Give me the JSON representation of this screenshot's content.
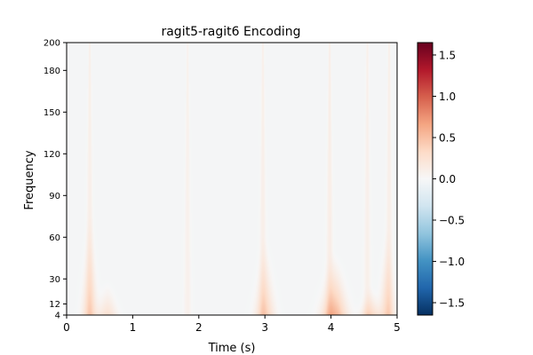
{
  "chart_data": {
    "type": "heatmap",
    "title": "ragit5-ragit6 Encoding",
    "xlabel": "Time (s)",
    "ylabel": "Frequency",
    "xlim": [
      0,
      5
    ],
    "ylim": [
      4,
      200
    ],
    "x_ticks": [
      "0",
      "1",
      "2",
      "3",
      "4",
      "5"
    ],
    "y_ticks": [
      "4",
      "12",
      "30",
      "60",
      "90",
      "120",
      "150",
      "180",
      "200"
    ],
    "colorbar": {
      "colormap": "RdBu_r",
      "range": [
        -1.65,
        1.65
      ],
      "ticks": [
        "1.5",
        "1.0",
        "0.5",
        "0.0",
        "−0.5",
        "−1.0",
        "−1.5"
      ]
    },
    "background_value": -0.03,
    "features": [
      {
        "kind": "blob",
        "time": 0.35,
        "freq_low": 4,
        "freq_high": 80,
        "peak": 0.35,
        "width_s": 0.08
      },
      {
        "kind": "blob",
        "time": 0.62,
        "freq_low": 4,
        "freq_high": 30,
        "peak": 0.28,
        "width_s": 0.1
      },
      {
        "kind": "blob",
        "time": 3.0,
        "freq_low": 4,
        "freq_high": 60,
        "peak": 0.4,
        "width_s": 0.1
      },
      {
        "kind": "blob",
        "time": 4.05,
        "freq_low": 4,
        "freq_high": 50,
        "peak": 0.6,
        "width_s": 0.13
      },
      {
        "kind": "blob",
        "time": 4.6,
        "freq_low": 4,
        "freq_high": 25,
        "peak": 0.35,
        "width_s": 0.1
      },
      {
        "kind": "blob",
        "time": 4.85,
        "freq_low": 4,
        "freq_high": 70,
        "peak": 0.35,
        "width_s": 0.08
      },
      {
        "kind": "streak",
        "time": 0.35,
        "freq_low": 4,
        "freq_high": 200,
        "peak": 0.22
      },
      {
        "kind": "streak",
        "time": 1.83,
        "freq_low": 4,
        "freq_high": 200,
        "peak": 0.18
      },
      {
        "kind": "streak",
        "time": 2.97,
        "freq_low": 4,
        "freq_high": 200,
        "peak": 0.22
      },
      {
        "kind": "streak",
        "time": 3.98,
        "freq_low": 4,
        "freq_high": 200,
        "peak": 0.24
      },
      {
        "kind": "streak",
        "time": 4.55,
        "freq_low": 4,
        "freq_high": 200,
        "peak": 0.2
      },
      {
        "kind": "streak",
        "time": 4.88,
        "freq_low": 4,
        "freq_high": 200,
        "peak": 0.22
      }
    ]
  }
}
